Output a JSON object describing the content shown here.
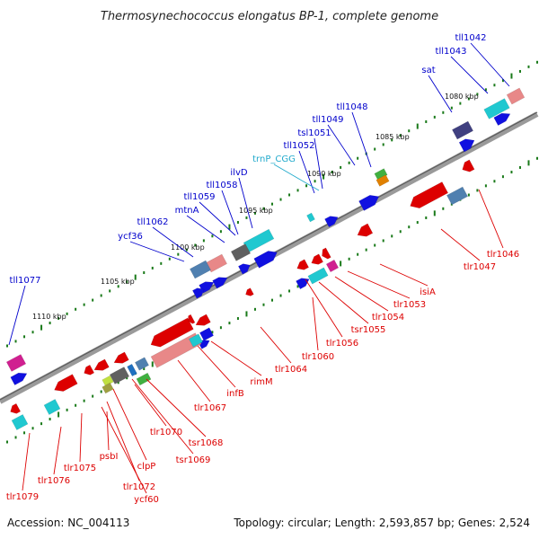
{
  "title": "Thermosynechococcus elongatus BP-1, complete genome",
  "footer": {
    "accession": "Accession: NC_004113",
    "topology": "Topology: circular; Length: 2,593,857 bp; Genes: 2,524"
  },
  "colors": {
    "backbone": "#808080",
    "forward_label": "#0000cc",
    "reverse_label": "#dd0000",
    "trna_label": "#22aacc",
    "tick": "#1a7a1a"
  },
  "scale_labels": [
    "1080 kbp",
    "1085 kbp",
    "1090 kbp",
    "1095 kbp",
    "1100 kbp",
    "1105 kbp",
    "1110 kbp"
  ],
  "forward_genes": [
    "tll1042",
    "tll1043",
    "sat",
    "tll1048",
    "tll1049",
    "tsl1051",
    "tll1052",
    "trnP_CGG",
    "ilvD",
    "tll1058",
    "tll1059",
    "mtnA",
    "tll1062",
    "ycf36",
    "tll1077"
  ],
  "reverse_genes": [
    "tlr1046",
    "tlr1047",
    "isiA",
    "tlr1053",
    "tlr1054",
    "tsr1055",
    "tlr1056",
    "tlr1060",
    "tlr1064",
    "rimM",
    "infB",
    "tlr1067",
    "tsr1068",
    "tsr1069",
    "tlr1070",
    "clpP",
    "tlr1072",
    "ycf60",
    "psbI",
    "tlr1075",
    "tlr1076",
    "tlr1079"
  ]
}
